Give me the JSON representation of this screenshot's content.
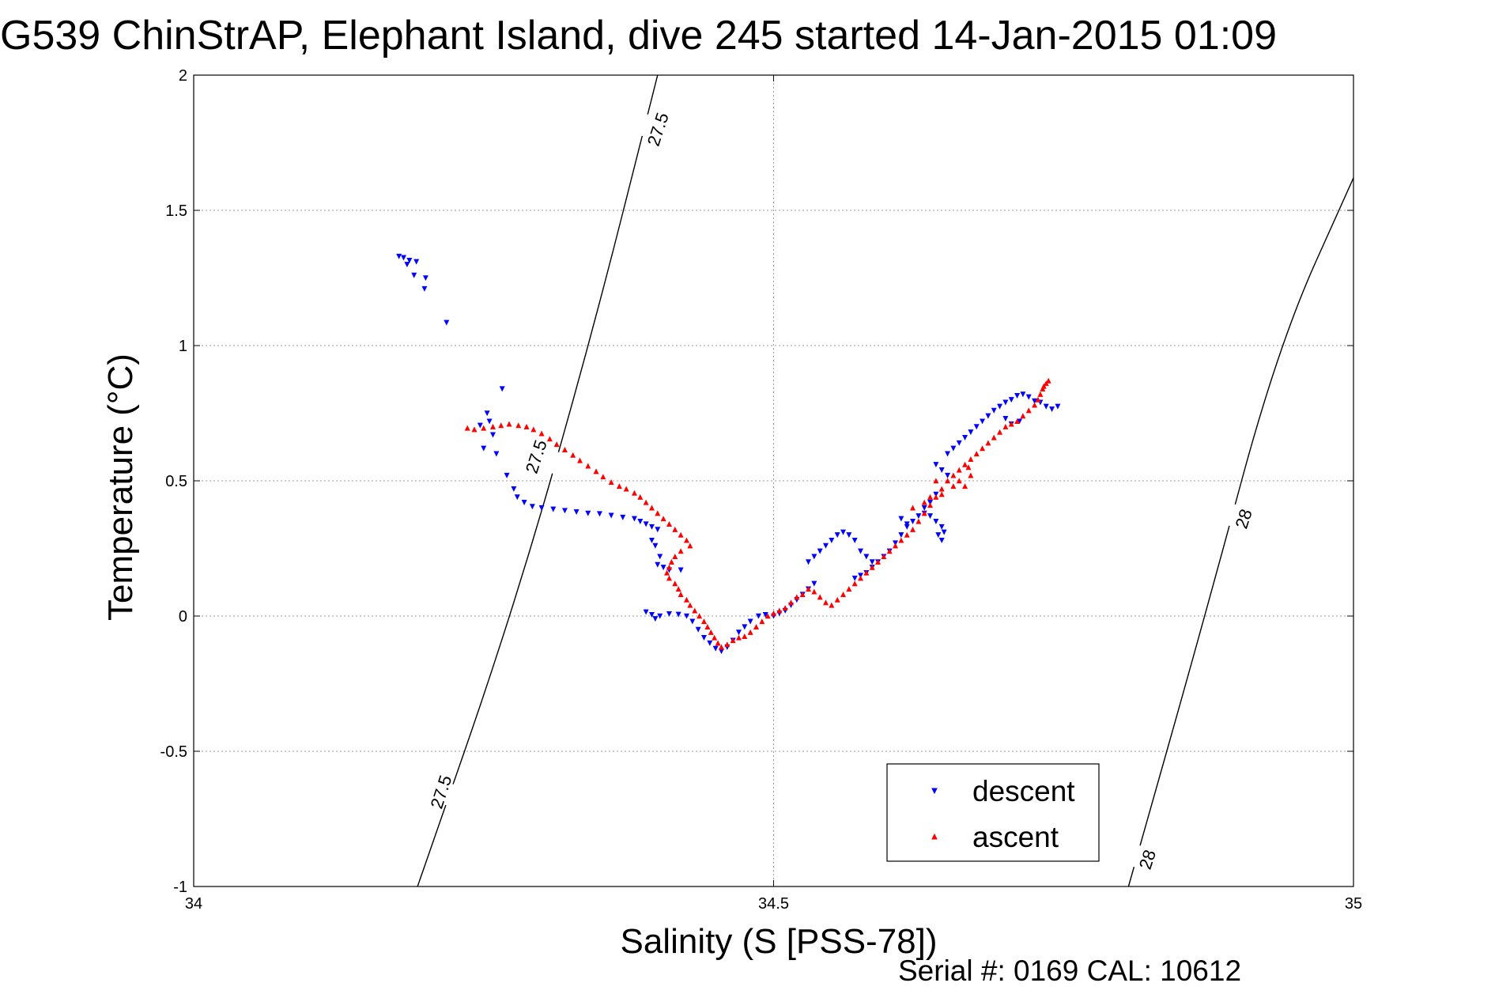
{
  "chart_data": {
    "type": "scatter",
    "title": "G539 ChinStrAP, Elephant Island, dive 245 started 14-Jan-2015 01:09",
    "xlabel": "Salinity (S [PSS-78])",
    "ylabel": "Temperature (°C)",
    "footer": "Serial #: 0169 CAL: 10612",
    "xlim": [
      34,
      35
    ],
    "ylim": [
      -1,
      2
    ],
    "xticks": [
      34,
      34.5,
      35
    ],
    "xtick_labels": [
      "34",
      "34.5",
      "35"
    ],
    "yticks": [
      -1,
      -0.5,
      0,
      0.5,
      1,
      1.5,
      2
    ],
    "ytick_labels": [
      "-1",
      "-0.5",
      "0",
      "0.5",
      "1",
      "1.5",
      "2"
    ],
    "grid": true,
    "legend_position": "bottom-right",
    "series": [
      {
        "name": "descent",
        "color": "#0000ff",
        "marker": "triangle-down",
        "points": [
          [
            34.177,
            1.33
          ],
          [
            34.181,
            1.325
          ],
          [
            34.186,
            1.315
          ],
          [
            34.192,
            1.31
          ],
          [
            34.184,
            1.3
          ],
          [
            34.19,
            1.26
          ],
          [
            34.2,
            1.25
          ],
          [
            34.199,
            1.21
          ],
          [
            34.218,
            1.085
          ],
          [
            34.266,
            0.84
          ],
          [
            34.253,
            0.75
          ],
          [
            34.255,
            0.72
          ],
          [
            34.247,
            0.705
          ],
          [
            34.258,
            0.67
          ],
          [
            34.25,
            0.62
          ],
          [
            34.261,
            0.6
          ],
          [
            34.27,
            0.52
          ],
          [
            34.276,
            0.47
          ],
          [
            34.279,
            0.44
          ],
          [
            34.285,
            0.42
          ],
          [
            34.292,
            0.405
          ],
          [
            34.3,
            0.4
          ],
          [
            34.31,
            0.395
          ],
          [
            34.32,
            0.39
          ],
          [
            34.33,
            0.385
          ],
          [
            34.34,
            0.38
          ],
          [
            34.35,
            0.378
          ],
          [
            34.36,
            0.372
          ],
          [
            34.37,
            0.365
          ],
          [
            34.38,
            0.36
          ],
          [
            34.385,
            0.35
          ],
          [
            34.39,
            0.34
          ],
          [
            34.395,
            0.33
          ],
          [
            34.4,
            0.32
          ],
          [
            34.395,
            0.28
          ],
          [
            34.398,
            0.26
          ],
          [
            34.402,
            0.22
          ],
          [
            34.4,
            0.19
          ],
          [
            34.405,
            0.18
          ],
          [
            34.41,
            0.17
          ],
          [
            34.42,
            0.17
          ],
          [
            34.39,
            0.015
          ],
          [
            34.395,
            0.005
          ],
          [
            34.398,
            -0.01
          ],
          [
            34.402,
            0.0
          ],
          [
            34.41,
            0.008
          ],
          [
            34.418,
            0.006
          ],
          [
            34.425,
            0.0
          ],
          [
            34.43,
            -0.02
          ],
          [
            34.435,
            -0.05
          ],
          [
            34.44,
            -0.08
          ],
          [
            34.445,
            -0.1
          ],
          [
            34.45,
            -0.12
          ],
          [
            34.455,
            -0.13
          ],
          [
            34.46,
            -0.115
          ],
          [
            34.465,
            -0.09
          ],
          [
            34.47,
            -0.06
          ],
          [
            34.475,
            -0.04
          ],
          [
            34.48,
            -0.02
          ],
          [
            34.487,
            0.0
          ],
          [
            34.493,
            0.005
          ],
          [
            34.5,
            0.0
          ],
          [
            34.505,
            0.01
          ],
          [
            34.51,
            0.02
          ],
          [
            34.515,
            0.04
          ],
          [
            34.52,
            0.06
          ],
          [
            34.525,
            0.08
          ],
          [
            34.53,
            0.1
          ],
          [
            34.535,
            0.12
          ],
          [
            34.53,
            0.2
          ],
          [
            34.535,
            0.22
          ],
          [
            34.54,
            0.24
          ],
          [
            34.545,
            0.26
          ],
          [
            34.55,
            0.28
          ],
          [
            34.555,
            0.3
          ],
          [
            34.56,
            0.31
          ],
          [
            34.565,
            0.3
          ],
          [
            34.57,
            0.28
          ],
          [
            34.575,
            0.24
          ],
          [
            34.58,
            0.22
          ],
          [
            34.585,
            0.2
          ],
          [
            34.57,
            0.14
          ],
          [
            34.575,
            0.15
          ],
          [
            34.58,
            0.16
          ],
          [
            34.585,
            0.18
          ],
          [
            34.59,
            0.2
          ],
          [
            34.595,
            0.22
          ],
          [
            34.6,
            0.24
          ],
          [
            34.605,
            0.27
          ],
          [
            34.61,
            0.3
          ],
          [
            34.615,
            0.33
          ],
          [
            34.62,
            0.35
          ],
          [
            34.625,
            0.37
          ],
          [
            34.63,
            0.38
          ],
          [
            34.635,
            0.37
          ],
          [
            34.64,
            0.35
          ],
          [
            34.645,
            0.33
          ],
          [
            34.61,
            0.36
          ],
          [
            34.615,
            0.34
          ],
          [
            34.63,
            0.4
          ],
          [
            34.635,
            0.42
          ],
          [
            34.64,
            0.45
          ],
          [
            34.642,
            0.3
          ],
          [
            34.645,
            0.28
          ],
          [
            34.647,
            0.31
          ],
          [
            34.64,
            0.56
          ],
          [
            34.645,
            0.54
          ],
          [
            34.65,
            0.52
          ],
          [
            34.65,
            0.6
          ],
          [
            34.655,
            0.62
          ],
          [
            34.66,
            0.64
          ],
          [
            34.665,
            0.66
          ],
          [
            34.67,
            0.68
          ],
          [
            34.675,
            0.7
          ],
          [
            34.68,
            0.72
          ],
          [
            34.685,
            0.74
          ],
          [
            34.69,
            0.76
          ],
          [
            34.695,
            0.775
          ],
          [
            34.7,
            0.79
          ],
          [
            34.705,
            0.8
          ],
          [
            34.71,
            0.815
          ],
          [
            34.715,
            0.82
          ],
          [
            34.72,
            0.81
          ],
          [
            34.725,
            0.795
          ],
          [
            34.73,
            0.79
          ],
          [
            34.735,
            0.775
          ],
          [
            34.74,
            0.765
          ],
          [
            34.745,
            0.775
          ],
          [
            34.7,
            0.73
          ],
          [
            34.705,
            0.71
          ],
          [
            34.712,
            0.72
          ]
        ]
      },
      {
        "name": "ascent",
        "color": "#ff0000",
        "marker": "triangle-up",
        "points": [
          [
            34.236,
            0.695
          ],
          [
            34.242,
            0.69
          ],
          [
            34.25,
            0.695
          ],
          [
            34.258,
            0.7
          ],
          [
            34.265,
            0.705
          ],
          [
            34.272,
            0.71
          ],
          [
            34.28,
            0.705
          ],
          [
            34.287,
            0.7
          ],
          [
            34.293,
            0.69
          ],
          [
            34.3,
            0.675
          ],
          [
            34.307,
            0.655
          ],
          [
            34.313,
            0.635
          ],
          [
            34.32,
            0.615
          ],
          [
            34.327,
            0.595
          ],
          [
            34.333,
            0.575
          ],
          [
            34.34,
            0.555
          ],
          [
            34.347,
            0.535
          ],
          [
            34.353,
            0.515
          ],
          [
            34.36,
            0.495
          ],
          [
            34.367,
            0.48
          ],
          [
            34.373,
            0.47
          ],
          [
            34.38,
            0.455
          ],
          [
            34.385,
            0.44
          ],
          [
            34.39,
            0.42
          ],
          [
            34.395,
            0.4
          ],
          [
            34.4,
            0.38
          ],
          [
            34.405,
            0.36
          ],
          [
            34.41,
            0.34
          ],
          [
            34.415,
            0.32
          ],
          [
            34.42,
            0.3
          ],
          [
            34.425,
            0.28
          ],
          [
            34.428,
            0.26
          ],
          [
            34.42,
            0.24
          ],
          [
            34.415,
            0.22
          ],
          [
            34.412,
            0.2
          ],
          [
            34.41,
            0.18
          ],
          [
            34.408,
            0.16
          ],
          [
            34.41,
            0.14
          ],
          [
            34.415,
            0.12
          ],
          [
            34.418,
            0.1
          ],
          [
            34.42,
            0.08
          ],
          [
            34.425,
            0.06
          ],
          [
            34.428,
            0.04
          ],
          [
            34.432,
            0.02
          ],
          [
            34.436,
            0.0
          ],
          [
            34.44,
            -0.02
          ],
          [
            34.443,
            -0.04
          ],
          [
            34.446,
            -0.06
          ],
          [
            34.449,
            -0.08
          ],
          [
            34.452,
            -0.1
          ],
          [
            34.455,
            -0.115
          ],
          [
            34.46,
            -0.105
          ],
          [
            34.465,
            -0.09
          ],
          [
            34.47,
            -0.08
          ],
          [
            34.475,
            -0.075
          ],
          [
            34.48,
            -0.06
          ],
          [
            34.485,
            -0.04
          ],
          [
            34.49,
            -0.02
          ],
          [
            34.495,
            0.0
          ],
          [
            34.5,
            0.01
          ],
          [
            34.505,
            0.02
          ],
          [
            34.51,
            0.03
          ],
          [
            34.515,
            0.05
          ],
          [
            34.52,
            0.07
          ],
          [
            34.525,
            0.08
          ],
          [
            34.53,
            0.1
          ],
          [
            34.535,
            0.09
          ],
          [
            34.54,
            0.07
          ],
          [
            34.545,
            0.05
          ],
          [
            34.55,
            0.04
          ],
          [
            34.555,
            0.06
          ],
          [
            34.56,
            0.08
          ],
          [
            34.565,
            0.1
          ],
          [
            34.57,
            0.12
          ],
          [
            34.575,
            0.14
          ],
          [
            34.58,
            0.16
          ],
          [
            34.585,
            0.18
          ],
          [
            34.59,
            0.2
          ],
          [
            34.595,
            0.22
          ],
          [
            34.6,
            0.24
          ],
          [
            34.605,
            0.26
          ],
          [
            34.61,
            0.28
          ],
          [
            34.615,
            0.3
          ],
          [
            34.62,
            0.32
          ],
          [
            34.625,
            0.35
          ],
          [
            34.63,
            0.38
          ],
          [
            34.635,
            0.41
          ],
          [
            34.64,
            0.44
          ],
          [
            34.645,
            0.47
          ],
          [
            34.65,
            0.5
          ],
          [
            34.655,
            0.52
          ],
          [
            34.66,
            0.54
          ],
          [
            34.665,
            0.56
          ],
          [
            34.67,
            0.58
          ],
          [
            34.675,
            0.6
          ],
          [
            34.68,
            0.62
          ],
          [
            34.685,
            0.64
          ],
          [
            34.69,
            0.66
          ],
          [
            34.695,
            0.68
          ],
          [
            34.7,
            0.7
          ],
          [
            34.705,
            0.71
          ],
          [
            34.71,
            0.72
          ],
          [
            34.715,
            0.74
          ],
          [
            34.72,
            0.76
          ],
          [
            34.725,
            0.78
          ],
          [
            34.728,
            0.8
          ],
          [
            34.73,
            0.82
          ],
          [
            34.732,
            0.84
          ],
          [
            34.735,
            0.86
          ],
          [
            34.737,
            0.87
          ],
          [
            34.733,
            0.85
          ],
          [
            34.64,
            0.5
          ],
          [
            34.645,
            0.45
          ],
          [
            34.655,
            0.48
          ],
          [
            34.66,
            0.5
          ],
          [
            34.665,
            0.48
          ],
          [
            34.67,
            0.52
          ],
          [
            34.668,
            0.55
          ],
          [
            34.63,
            0.42
          ],
          [
            34.635,
            0.44
          ],
          [
            34.62,
            0.4
          ]
        ]
      }
    ],
    "isopycnals": [
      {
        "label": "27.5",
        "points": [
          [
            34.193,
            -1.0
          ],
          [
            34.274,
            0.0
          ],
          [
            34.341,
            1.0
          ],
          [
            34.4,
            2.0
          ]
        ]
      },
      {
        "label": "28",
        "points": [
          [
            34.806,
            -1.0
          ],
          [
            34.872,
            0.0
          ],
          [
            34.935,
            1.0
          ],
          [
            35.0,
            1.62
          ]
        ]
      }
    ],
    "isopycnal_labels": [
      {
        "text": "27.5",
        "x": 34.4,
        "y": 1.8
      },
      {
        "text": "27.5",
        "x": 34.295,
        "y": 0.59
      },
      {
        "text": "27.5",
        "x": 34.213,
        "y": -0.65
      },
      {
        "text": "28",
        "x": 34.905,
        "y": 0.36
      },
      {
        "text": "28",
        "x": 34.822,
        "y": -0.9
      }
    ],
    "legend": [
      {
        "label": "descent",
        "color": "#0000ff",
        "marker": "triangle-down"
      },
      {
        "label": "ascent",
        "color": "#ff0000",
        "marker": "triangle-up"
      }
    ]
  }
}
